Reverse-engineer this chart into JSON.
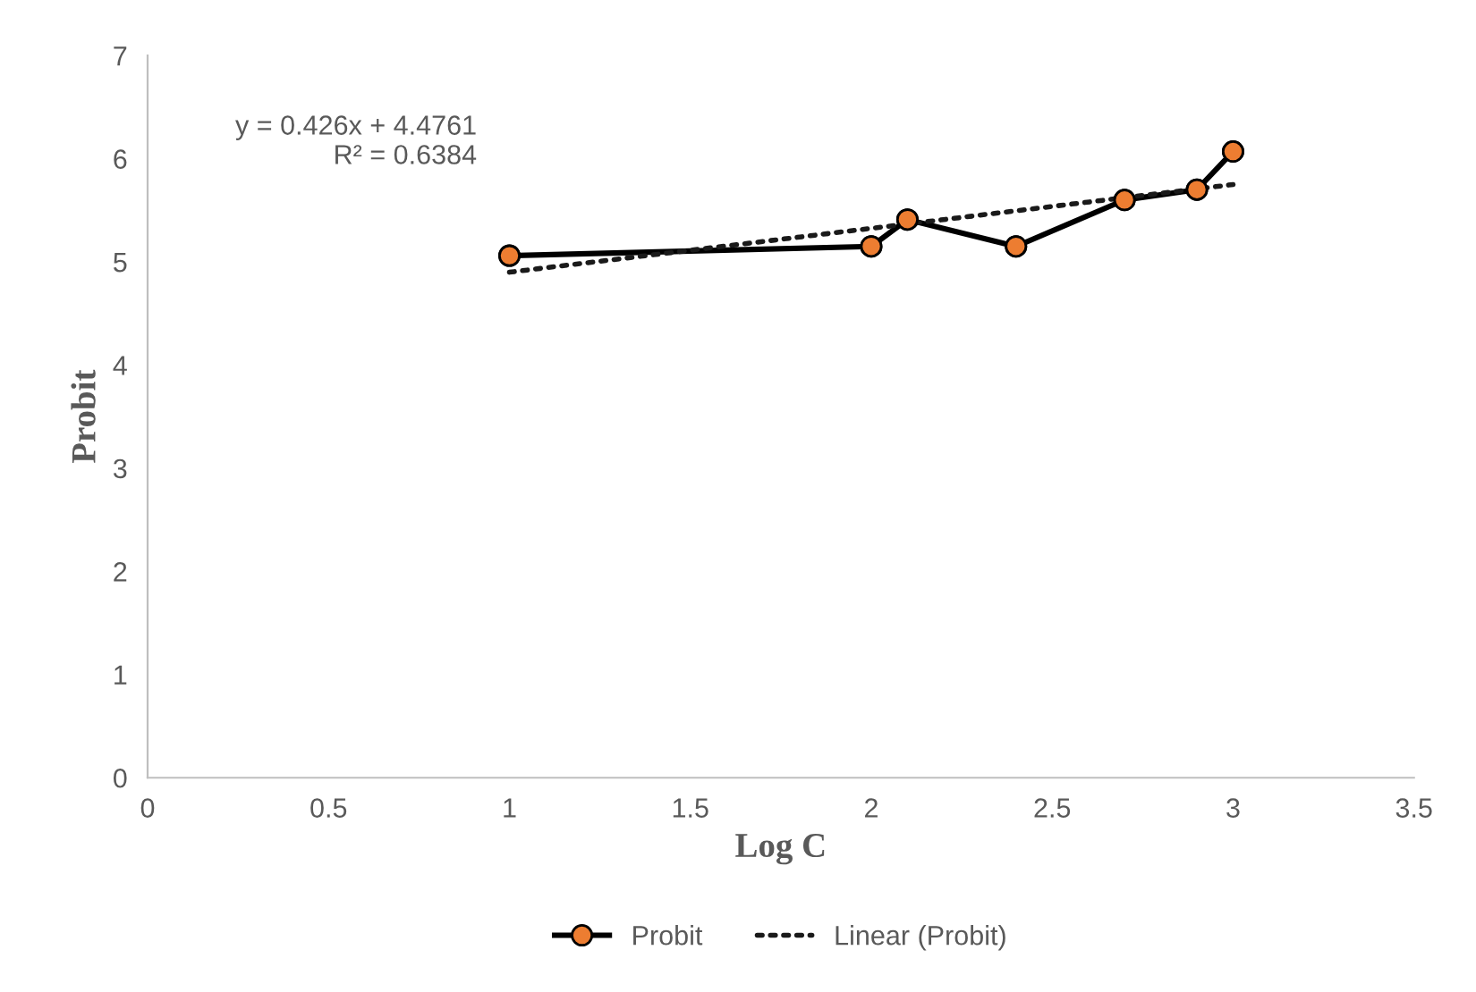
{
  "chart_data": {
    "type": "line",
    "xlabel": "Log C",
    "ylabel": "Probit",
    "xlim": [
      0,
      3.5
    ],
    "xticks": [
      0,
      0.5,
      1,
      1.5,
      2,
      2.5,
      3,
      3.5
    ],
    "ylim": [
      0,
      7
    ],
    "yticks": [
      0,
      1,
      2,
      3,
      4,
      5,
      6,
      7
    ],
    "series": [
      {
        "name": "Probit",
        "color": "#000000",
        "colors": [
          "#ed7d31",
          "#ed7d31",
          "#ed7d31",
          "#ed7d31",
          "#ed7d31",
          "#ed7d31",
          "#ed7d31"
        ],
        "marker": "circle",
        "line_style": "solid",
        "x": [
          1,
          2,
          2.1,
          2.4,
          2.7,
          2.9,
          3
        ],
        "values": [
          5.06,
          5.15,
          5.41,
          5.15,
          5.6,
          5.7,
          6.07
        ]
      },
      {
        "name": "Linear (Probit)",
        "color": "#1a1a1a",
        "marker": "none",
        "line_style": "dotted",
        "x": [
          1,
          3
        ],
        "values": [
          4.9,
          5.75
        ]
      }
    ],
    "annotations": [
      "y = 0.426x + 4.4761\nR² = 0.6384"
    ],
    "grid": false,
    "legend": "bottom"
  }
}
